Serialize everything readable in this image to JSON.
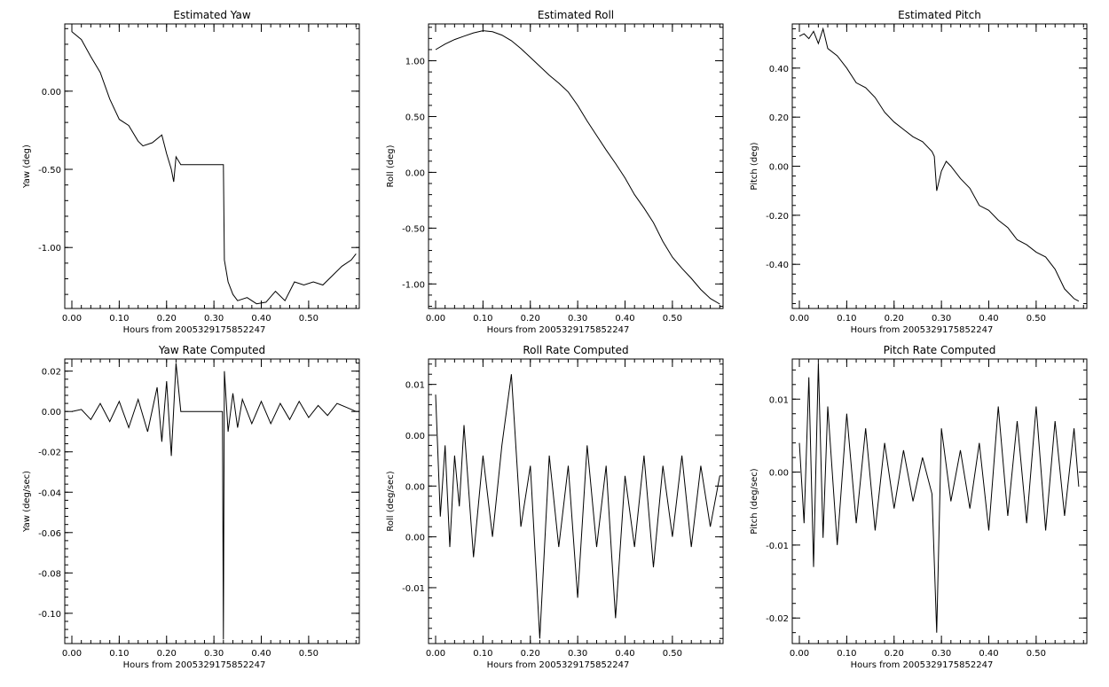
{
  "chart_data": [
    {
      "id": "estimated-yaw",
      "type": "line",
      "title": "Estimated Yaw",
      "xlabel": "Hours from 2005329175852247",
      "ylabel": "Yaw (deg)",
      "xlim": [
        -0.015,
        0.607
      ],
      "ylim": [
        -1.39,
        0.43
      ],
      "xticks": [
        0.0,
        0.1,
        0.2,
        0.3,
        0.4,
        0.5
      ],
      "xtick_labels": [
        "0.00",
        "0.10",
        "0.20",
        "0.30",
        "0.40",
        "0.50"
      ],
      "yticks": [
        0.0,
        -0.5,
        -1.0
      ],
      "ytick_labels": [
        "0.00",
        "-0.50",
        "-1.00"
      ],
      "grid": false,
      "x": [
        0.0,
        0.02,
        0.04,
        0.06,
        0.08,
        0.1,
        0.12,
        0.14,
        0.15,
        0.17,
        0.19,
        0.2,
        0.21,
        0.215,
        0.22,
        0.23,
        0.25,
        0.28,
        0.31,
        0.32,
        0.322,
        0.33,
        0.34,
        0.35,
        0.37,
        0.39,
        0.41,
        0.43,
        0.45,
        0.47,
        0.49,
        0.51,
        0.53,
        0.55,
        0.57,
        0.59,
        0.6
      ],
      "y": [
        0.38,
        0.33,
        0.22,
        0.12,
        -0.05,
        -0.18,
        -0.22,
        -0.32,
        -0.35,
        -0.33,
        -0.28,
        -0.4,
        -0.5,
        -0.58,
        -0.42,
        -0.47,
        -0.47,
        -0.47,
        -0.47,
        -0.47,
        -1.08,
        -1.22,
        -1.3,
        -1.34,
        -1.32,
        -1.36,
        -1.35,
        -1.28,
        -1.34,
        -1.22,
        -1.24,
        -1.22,
        -1.24,
        -1.18,
        -1.12,
        -1.08,
        -1.04
      ]
    },
    {
      "id": "estimated-roll",
      "type": "line",
      "title": "Estimated Roll",
      "xlabel": "Hours from 2005329175852247",
      "ylabel": "Roll (deg)",
      "xlim": [
        -0.015,
        0.607
      ],
      "ylim": [
        -1.22,
        1.33
      ],
      "xticks": [
        0.0,
        0.1,
        0.2,
        0.3,
        0.4,
        0.5
      ],
      "xtick_labels": [
        "0.00",
        "0.10",
        "0.20",
        "0.30",
        "0.40",
        "0.50"
      ],
      "yticks": [
        1.0,
        0.5,
        0.0,
        -0.5,
        -1.0
      ],
      "ytick_labels": [
        "1.00",
        "0.50",
        "0.00",
        "-0.50",
        "-1.00"
      ],
      "grid": false,
      "x": [
        0.0,
        0.02,
        0.04,
        0.06,
        0.08,
        0.1,
        0.12,
        0.14,
        0.16,
        0.18,
        0.2,
        0.22,
        0.24,
        0.26,
        0.28,
        0.3,
        0.32,
        0.34,
        0.36,
        0.38,
        0.4,
        0.42,
        0.44,
        0.46,
        0.48,
        0.5,
        0.52,
        0.54,
        0.56,
        0.58,
        0.6
      ],
      "y": [
        1.1,
        1.15,
        1.19,
        1.22,
        1.25,
        1.27,
        1.26,
        1.23,
        1.18,
        1.11,
        1.03,
        0.95,
        0.87,
        0.8,
        0.72,
        0.6,
        0.46,
        0.33,
        0.2,
        0.08,
        -0.05,
        -0.2,
        -0.32,
        -0.45,
        -0.62,
        -0.76,
        -0.86,
        -0.95,
        -1.05,
        -1.13,
        -1.18
      ]
    },
    {
      "id": "estimated-pitch",
      "type": "line",
      "title": "Estimated Pitch",
      "xlabel": "Hours from 2005329175852247",
      "ylabel": "Pitch (deg)",
      "xlim": [
        -0.015,
        0.607
      ],
      "ylim": [
        -0.58,
        0.58
      ],
      "xticks": [
        0.0,
        0.1,
        0.2,
        0.3,
        0.4,
        0.5
      ],
      "xtick_labels": [
        "0.00",
        "0.10",
        "0.20",
        "0.30",
        "0.40",
        "0.50"
      ],
      "yticks": [
        0.4,
        0.2,
        0.0,
        -0.2,
        -0.4
      ],
      "ytick_labels": [
        "0.40",
        "0.20",
        "0.00",
        "-0.20",
        "-0.40"
      ],
      "grid": false,
      "x": [
        0.0,
        0.01,
        0.02,
        0.03,
        0.04,
        0.05,
        0.06,
        0.08,
        0.1,
        0.12,
        0.14,
        0.16,
        0.18,
        0.2,
        0.22,
        0.24,
        0.26,
        0.28,
        0.285,
        0.29,
        0.3,
        0.31,
        0.32,
        0.34,
        0.36,
        0.38,
        0.4,
        0.42,
        0.44,
        0.46,
        0.48,
        0.5,
        0.52,
        0.54,
        0.56,
        0.58,
        0.59
      ],
      "y": [
        0.53,
        0.54,
        0.52,
        0.55,
        0.5,
        0.56,
        0.48,
        0.45,
        0.4,
        0.34,
        0.32,
        0.28,
        0.22,
        0.18,
        0.15,
        0.12,
        0.1,
        0.06,
        0.04,
        -0.1,
        -0.02,
        0.02,
        0.0,
        -0.05,
        -0.09,
        -0.16,
        -0.18,
        -0.22,
        -0.25,
        -0.3,
        -0.32,
        -0.35,
        -0.37,
        -0.42,
        -0.5,
        -0.54,
        -0.55
      ]
    },
    {
      "id": "yaw-rate",
      "type": "line",
      "title": "Yaw Rate Computed",
      "xlabel": "Hours from 2005329175852247",
      "ylabel": "Yaw (deg/sec)",
      "xlim": [
        -0.015,
        0.607
      ],
      "ylim": [
        -0.115,
        0.026
      ],
      "xticks": [
        0.0,
        0.1,
        0.2,
        0.3,
        0.4,
        0.5
      ],
      "xtick_labels": [
        "0.00",
        "0.10",
        "0.20",
        "0.30",
        "0.40",
        "0.50"
      ],
      "yticks": [
        0.02,
        0.0,
        -0.02,
        -0.04,
        -0.06,
        -0.08,
        -0.1
      ],
      "ytick_labels": [
        "0.02",
        "0.00",
        "-0.02",
        "-0.04",
        "-0.06",
        "-0.08",
        "-0.10"
      ],
      "grid": false,
      "x": [
        0.0,
        0.02,
        0.04,
        0.06,
        0.08,
        0.1,
        0.12,
        0.14,
        0.16,
        0.18,
        0.19,
        0.2,
        0.21,
        0.22,
        0.23,
        0.25,
        0.28,
        0.31,
        0.318,
        0.32,
        0.322,
        0.33,
        0.34,
        0.35,
        0.36,
        0.38,
        0.4,
        0.42,
        0.44,
        0.46,
        0.48,
        0.5,
        0.52,
        0.54,
        0.56,
        0.58,
        0.6
      ],
      "y": [
        0.0,
        0.001,
        -0.004,
        0.004,
        -0.005,
        0.005,
        -0.008,
        0.006,
        -0.01,
        0.012,
        -0.015,
        0.015,
        -0.022,
        0.024,
        0.0,
        0.0,
        0.0,
        0.0,
        0.0,
        -0.113,
        0.02,
        -0.01,
        0.009,
        -0.008,
        0.006,
        -0.006,
        0.005,
        -0.006,
        0.004,
        -0.004,
        0.005,
        -0.003,
        0.003,
        -0.002,
        0.004,
        0.002,
        0.0
      ]
    },
    {
      "id": "roll-rate",
      "type": "line",
      "title": "Roll Rate Computed",
      "xlabel": "Hours from 2005329175852247",
      "ylabel": "Roll (deg/sec)",
      "xlim": [
        -0.015,
        0.607
      ],
      "ylim": [
        -0.0155,
        0.0125
      ],
      "xticks": [
        0.0,
        0.1,
        0.2,
        0.3,
        0.4,
        0.5
      ],
      "xtick_labels": [
        "0.00",
        "0.10",
        "0.20",
        "0.30",
        "0.40",
        "0.50"
      ],
      "yticks": [
        0.01,
        0.005,
        0.0,
        -0.005,
        -0.01
      ],
      "ytick_labels": [
        "0.01",
        "0.00",
        "0.00",
        "0.00",
        "-0.01"
      ],
      "grid": false,
      "x": [
        0.0,
        0.01,
        0.02,
        0.03,
        0.04,
        0.05,
        0.06,
        0.08,
        0.1,
        0.12,
        0.14,
        0.16,
        0.18,
        0.2,
        0.22,
        0.24,
        0.26,
        0.28,
        0.3,
        0.32,
        0.34,
        0.36,
        0.38,
        0.4,
        0.42,
        0.44,
        0.46,
        0.48,
        0.5,
        0.52,
        0.54,
        0.56,
        0.58,
        0.6
      ],
      "y": [
        0.009,
        -0.003,
        0.004,
        -0.006,
        0.003,
        -0.002,
        0.006,
        -0.007,
        0.003,
        -0.005,
        0.004,
        0.011,
        -0.004,
        0.002,
        -0.015,
        0.003,
        -0.006,
        0.002,
        -0.011,
        0.004,
        -0.006,
        0.002,
        -0.013,
        0.001,
        -0.006,
        0.003,
        -0.008,
        0.002,
        -0.005,
        0.003,
        -0.006,
        0.002,
        -0.004,
        0.001
      ]
    },
    {
      "id": "pitch-rate",
      "type": "line",
      "title": "Pitch Rate Computed",
      "xlabel": "Hours from 2005329175852247",
      "ylabel": "Pitch (deg/sec)",
      "xlim": [
        -0.015,
        0.607
      ],
      "ylim": [
        -0.0235,
        0.0155
      ],
      "xticks": [
        0.0,
        0.1,
        0.2,
        0.3,
        0.4,
        0.5
      ],
      "xtick_labels": [
        "0.00",
        "0.10",
        "0.20",
        "0.30",
        "0.40",
        "0.50"
      ],
      "yticks": [
        0.01,
        0.0,
        -0.01,
        -0.02
      ],
      "ytick_labels": [
        "0.01",
        "0.00",
        "-0.01",
        "-0.02"
      ],
      "grid": false,
      "x": [
        0.0,
        0.01,
        0.02,
        0.03,
        0.04,
        0.05,
        0.06,
        0.08,
        0.1,
        0.12,
        0.14,
        0.16,
        0.18,
        0.2,
        0.22,
        0.24,
        0.26,
        0.28,
        0.29,
        0.3,
        0.32,
        0.34,
        0.36,
        0.38,
        0.4,
        0.42,
        0.44,
        0.46,
        0.48,
        0.5,
        0.52,
        0.54,
        0.56,
        0.58,
        0.59
      ],
      "y": [
        0.004,
        -0.007,
        0.013,
        -0.013,
        0.015,
        -0.009,
        0.009,
        -0.01,
        0.008,
        -0.007,
        0.006,
        -0.008,
        0.004,
        -0.005,
        0.003,
        -0.004,
        0.002,
        -0.003,
        -0.022,
        0.006,
        -0.004,
        0.003,
        -0.005,
        0.004,
        -0.008,
        0.009,
        -0.006,
        0.007,
        -0.007,
        0.009,
        -0.008,
        0.007,
        -0.006,
        0.006,
        -0.002
      ]
    }
  ]
}
